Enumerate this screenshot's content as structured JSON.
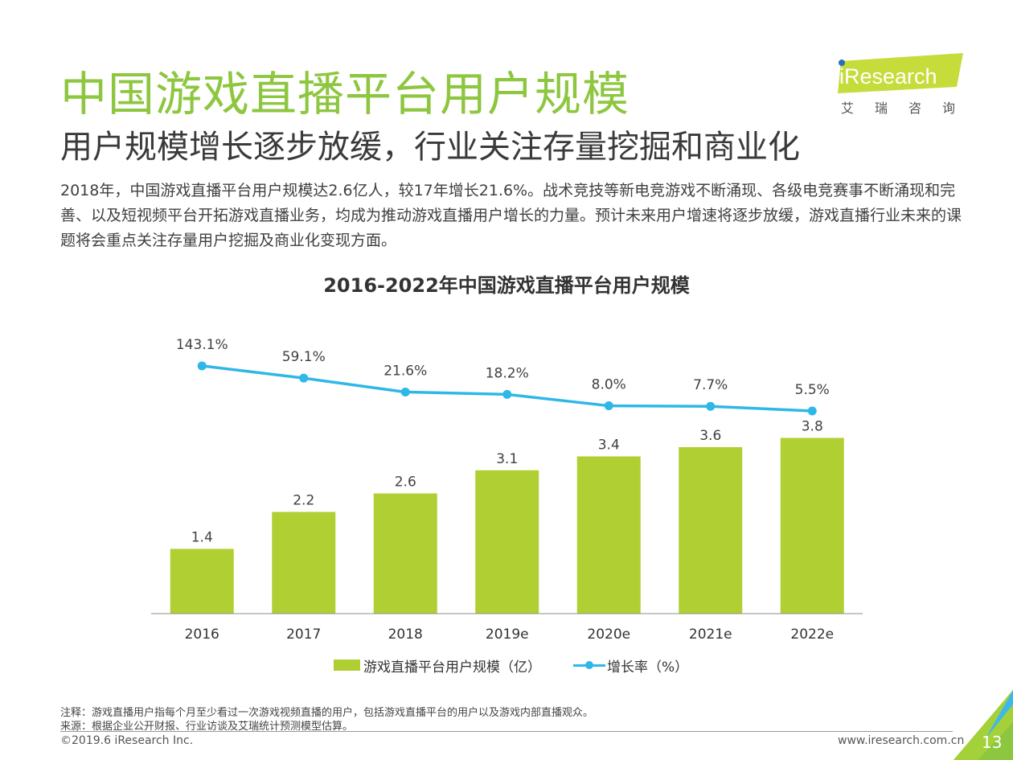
{
  "header": {
    "title": "中国游戏直播平台用户规模",
    "subtitle": "用户规模增长逐步放缓，行业关注存量挖掘和商业化",
    "summary": "2018年，中国游戏直播平台用户规模达2.6亿人，较17年增长21.6%。战术竞技等新电竞游戏不断涌现、各级电竞赛事不断涌现和完善、以及短视频平台开拓游戏直播业务，均成为推动游戏直播用户增长的力量。预计未来用户增速将逐步放缓，游戏直播行业未来的课题将会重点关注存量用户挖掘及商业化变现方面。"
  },
  "logo": {
    "text": "iResearch",
    "cn": "艾瑞咨询"
  },
  "chart_data": {
    "type": "bar",
    "title": "2016-2022年中国游戏直播平台用户规模",
    "categories": [
      "2016",
      "2017",
      "2018",
      "2019e",
      "2020e",
      "2021e",
      "2022e"
    ],
    "series": [
      {
        "name": "游戏直播平台用户规模（亿）",
        "type": "bar",
        "values": [
          1.4,
          2.2,
          2.6,
          3.1,
          3.4,
          3.6,
          3.8
        ],
        "labels": [
          "1.4",
          "2.2",
          "2.6",
          "3.1",
          "3.4",
          "3.6",
          "3.8"
        ]
      },
      {
        "name": "增长率（%）",
        "type": "line",
        "values": [
          143.1,
          59.1,
          21.6,
          18.2,
          8.0,
          7.7,
          5.5
        ],
        "labels": [
          "143.1%",
          "59.1%",
          "21.6%",
          "18.2%",
          "8.0%",
          "7.7%",
          "5.5%"
        ]
      }
    ],
    "legend": "bottom",
    "grid": false,
    "colors": {
      "bar": "#b0cf33",
      "line": "#2fb7e8"
    }
  },
  "notes": {
    "note": "注释：游戏直播用户指每个月至少看过一次游戏视频直播的用户，包括游戏直播平台的用户以及游戏内部直播观众。",
    "source": "来源：根据企业公开财报、行业访谈及艾瑞统计预测模型估算。"
  },
  "footer": {
    "copyright": "©2019.6 iResearch Inc.",
    "website": "www.iresearch.com.cn",
    "page": "13"
  },
  "colors": {
    "brand_green": "#8dc63f",
    "bar": "#b0cf33",
    "line": "#2fb7e8"
  }
}
